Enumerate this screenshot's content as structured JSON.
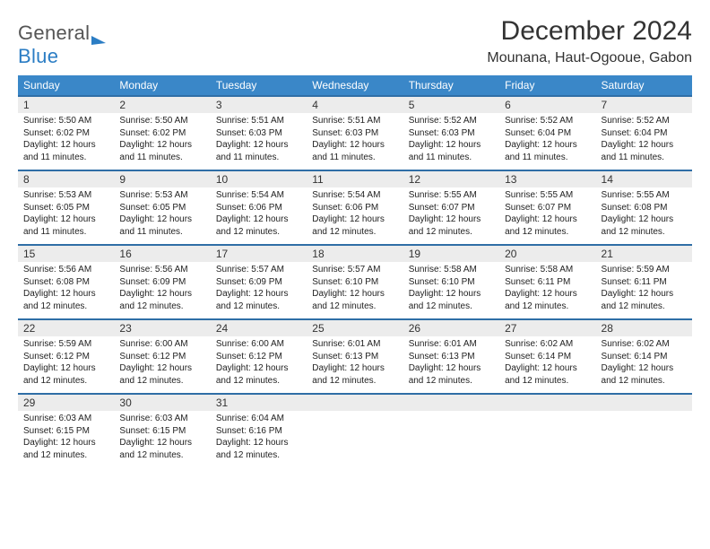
{
  "brand": {
    "word1": "General",
    "word2": "Blue"
  },
  "title": "December 2024",
  "location": "Mounana, Haut-Ogooue, Gabon",
  "colors": {
    "header_bg": "#3a87c8",
    "header_text": "#ffffff",
    "date_row_bg": "#ececec",
    "row_border": "#2f6ea6",
    "brand_gray": "#555555",
    "brand_blue": "#2b7dc4",
    "body_text": "#222222",
    "page_bg": "#ffffff"
  },
  "typography": {
    "title_fontsize": 30,
    "location_fontsize": 16,
    "dayheader_fontsize": 12,
    "daynum_fontsize": 12,
    "cell_fontsize": 10
  },
  "layout": {
    "columns": 7,
    "rows": 5,
    "first_weekday": "Sunday"
  },
  "weekdays": [
    "Sunday",
    "Monday",
    "Tuesday",
    "Wednesday",
    "Thursday",
    "Friday",
    "Saturday"
  ],
  "days": [
    {
      "n": 1,
      "sunrise": "5:50 AM",
      "sunset": "6:02 PM",
      "daylight": "12 hours and 11 minutes."
    },
    {
      "n": 2,
      "sunrise": "5:50 AM",
      "sunset": "6:02 PM",
      "daylight": "12 hours and 11 minutes."
    },
    {
      "n": 3,
      "sunrise": "5:51 AM",
      "sunset": "6:03 PM",
      "daylight": "12 hours and 11 minutes."
    },
    {
      "n": 4,
      "sunrise": "5:51 AM",
      "sunset": "6:03 PM",
      "daylight": "12 hours and 11 minutes."
    },
    {
      "n": 5,
      "sunrise": "5:52 AM",
      "sunset": "6:03 PM",
      "daylight": "12 hours and 11 minutes."
    },
    {
      "n": 6,
      "sunrise": "5:52 AM",
      "sunset": "6:04 PM",
      "daylight": "12 hours and 11 minutes."
    },
    {
      "n": 7,
      "sunrise": "5:52 AM",
      "sunset": "6:04 PM",
      "daylight": "12 hours and 11 minutes."
    },
    {
      "n": 8,
      "sunrise": "5:53 AM",
      "sunset": "6:05 PM",
      "daylight": "12 hours and 11 minutes."
    },
    {
      "n": 9,
      "sunrise": "5:53 AM",
      "sunset": "6:05 PM",
      "daylight": "12 hours and 11 minutes."
    },
    {
      "n": 10,
      "sunrise": "5:54 AM",
      "sunset": "6:06 PM",
      "daylight": "12 hours and 12 minutes."
    },
    {
      "n": 11,
      "sunrise": "5:54 AM",
      "sunset": "6:06 PM",
      "daylight": "12 hours and 12 minutes."
    },
    {
      "n": 12,
      "sunrise": "5:55 AM",
      "sunset": "6:07 PM",
      "daylight": "12 hours and 12 minutes."
    },
    {
      "n": 13,
      "sunrise": "5:55 AM",
      "sunset": "6:07 PM",
      "daylight": "12 hours and 12 minutes."
    },
    {
      "n": 14,
      "sunrise": "5:55 AM",
      "sunset": "6:08 PM",
      "daylight": "12 hours and 12 minutes."
    },
    {
      "n": 15,
      "sunrise": "5:56 AM",
      "sunset": "6:08 PM",
      "daylight": "12 hours and 12 minutes."
    },
    {
      "n": 16,
      "sunrise": "5:56 AM",
      "sunset": "6:09 PM",
      "daylight": "12 hours and 12 minutes."
    },
    {
      "n": 17,
      "sunrise": "5:57 AM",
      "sunset": "6:09 PM",
      "daylight": "12 hours and 12 minutes."
    },
    {
      "n": 18,
      "sunrise": "5:57 AM",
      "sunset": "6:10 PM",
      "daylight": "12 hours and 12 minutes."
    },
    {
      "n": 19,
      "sunrise": "5:58 AM",
      "sunset": "6:10 PM",
      "daylight": "12 hours and 12 minutes."
    },
    {
      "n": 20,
      "sunrise": "5:58 AM",
      "sunset": "6:11 PM",
      "daylight": "12 hours and 12 minutes."
    },
    {
      "n": 21,
      "sunrise": "5:59 AM",
      "sunset": "6:11 PM",
      "daylight": "12 hours and 12 minutes."
    },
    {
      "n": 22,
      "sunrise": "5:59 AM",
      "sunset": "6:12 PM",
      "daylight": "12 hours and 12 minutes."
    },
    {
      "n": 23,
      "sunrise": "6:00 AM",
      "sunset": "6:12 PM",
      "daylight": "12 hours and 12 minutes."
    },
    {
      "n": 24,
      "sunrise": "6:00 AM",
      "sunset": "6:12 PM",
      "daylight": "12 hours and 12 minutes."
    },
    {
      "n": 25,
      "sunrise": "6:01 AM",
      "sunset": "6:13 PM",
      "daylight": "12 hours and 12 minutes."
    },
    {
      "n": 26,
      "sunrise": "6:01 AM",
      "sunset": "6:13 PM",
      "daylight": "12 hours and 12 minutes."
    },
    {
      "n": 27,
      "sunrise": "6:02 AM",
      "sunset": "6:14 PM",
      "daylight": "12 hours and 12 minutes."
    },
    {
      "n": 28,
      "sunrise": "6:02 AM",
      "sunset": "6:14 PM",
      "daylight": "12 hours and 12 minutes."
    },
    {
      "n": 29,
      "sunrise": "6:03 AM",
      "sunset": "6:15 PM",
      "daylight": "12 hours and 12 minutes."
    },
    {
      "n": 30,
      "sunrise": "6:03 AM",
      "sunset": "6:15 PM",
      "daylight": "12 hours and 12 minutes."
    },
    {
      "n": 31,
      "sunrise": "6:04 AM",
      "sunset": "6:16 PM",
      "daylight": "12 hours and 12 minutes."
    }
  ],
  "labels": {
    "sunrise": "Sunrise:",
    "sunset": "Sunset:",
    "daylight": "Daylight:"
  }
}
